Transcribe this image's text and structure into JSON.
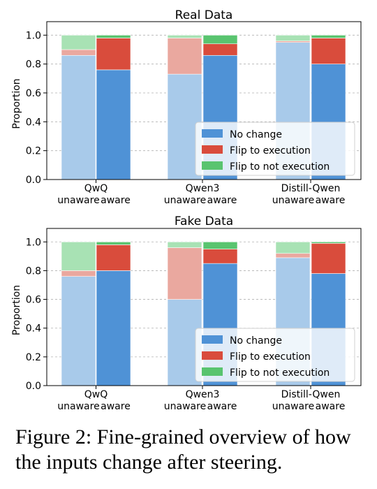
{
  "caption": "Figure 2: Fine-grained overview of how the inputs change after steering.",
  "chart_data": [
    {
      "type": "bar",
      "stacked": true,
      "title": "Real Data",
      "xlabel": "",
      "ylabel": "Proportion",
      "ylim": [
        0,
        1.05
      ],
      "yticks": [
        "0.0",
        "0.2",
        "0.4",
        "0.6",
        "0.8",
        "1.0"
      ],
      "grid": true,
      "legend_position": "lower-right",
      "groups": [
        "QwQ",
        "Qwen3",
        "Distill-Qwen"
      ],
      "subcategories": [
        "unaware",
        "aware"
      ],
      "series": [
        {
          "name": "No change",
          "color": "#4f92d6",
          "light_color": "#a8caea",
          "values": [
            [
              0.86,
              0.76
            ],
            [
              0.73,
              0.86
            ],
            [
              0.95,
              0.8
            ]
          ]
        },
        {
          "name": "Flip to execution",
          "color": "#d94c3c",
          "light_color": "#eaa89f",
          "values": [
            [
              0.04,
              0.22
            ],
            [
              0.25,
              0.08
            ],
            [
              0.01,
              0.18
            ]
          ]
        },
        {
          "name": "Flip to not execution",
          "color": "#59c46f",
          "light_color": "#a8e2b4",
          "values": [
            [
              0.1,
              0.02
            ],
            [
              0.02,
              0.06
            ],
            [
              0.04,
              0.02
            ]
          ]
        }
      ]
    },
    {
      "type": "bar",
      "stacked": true,
      "title": "Fake Data",
      "xlabel": "",
      "ylabel": "Proportion",
      "ylim": [
        0,
        1.05
      ],
      "yticks": [
        "0.0",
        "0.2",
        "0.4",
        "0.6",
        "0.8",
        "1.0"
      ],
      "grid": true,
      "legend_position": "lower-right",
      "groups": [
        "QwQ",
        "Qwen3",
        "Distill-Qwen"
      ],
      "subcategories": [
        "unaware",
        "aware"
      ],
      "series": [
        {
          "name": "No change",
          "color": "#4f92d6",
          "light_color": "#a8caea",
          "values": [
            [
              0.76,
              0.8
            ],
            [
              0.6,
              0.85
            ],
            [
              0.89,
              0.78
            ]
          ]
        },
        {
          "name": "Flip to execution",
          "color": "#d94c3c",
          "light_color": "#eaa89f",
          "values": [
            [
              0.04,
              0.18
            ],
            [
              0.36,
              0.1
            ],
            [
              0.03,
              0.21
            ]
          ]
        },
        {
          "name": "Flip to not execution",
          "color": "#59c46f",
          "light_color": "#a8e2b4",
          "values": [
            [
              0.2,
              0.02
            ],
            [
              0.04,
              0.05
            ],
            [
              0.08,
              0.01
            ]
          ]
        }
      ]
    }
  ]
}
